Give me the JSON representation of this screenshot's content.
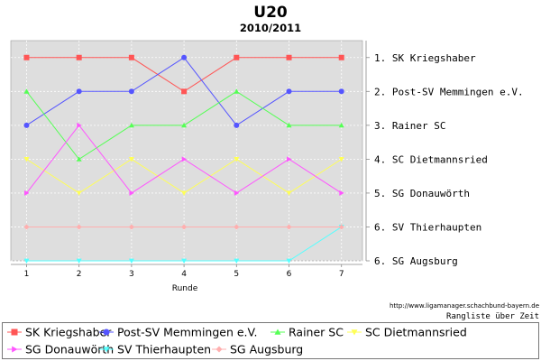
{
  "chart_data": {
    "type": "line",
    "title": "U20",
    "subtitle": "2010/2011",
    "xlabel": "Runde",
    "ylabel": "",
    "x": [
      1,
      2,
      3,
      4,
      5,
      6,
      7
    ],
    "ylim": [
      7,
      0.5
    ],
    "y_reversed": true,
    "grid": true,
    "legend_position": "bottom",
    "right_tick_labels": [
      "1. SK Kriegshaber",
      "2. Post-SV Memmingen e.V.",
      "3. Rainer SC",
      "4. SC Dietmannsried",
      "5. SG Donauwörth",
      "6. SV Thierhaupten",
      "6. SG Augsburg"
    ],
    "right_tick_ranks": [
      1,
      2,
      3,
      4,
      5,
      6,
      7
    ],
    "source": "http://www.ligamanager.schachbund-bayern.de",
    "caption": "Rangliste über Zeit",
    "series": [
      {
        "name": "SK Kriegshaber",
        "color": "#ff5555",
        "marker": "square",
        "values": [
          1,
          1,
          1,
          2,
          1,
          1,
          1
        ]
      },
      {
        "name": "Post-SV Memmingen e.V.",
        "color": "#5555ff",
        "marker": "circle",
        "values": [
          3,
          2,
          2,
          1,
          3,
          2,
          2
        ]
      },
      {
        "name": "Rainer SC",
        "color": "#55ff55",
        "marker": "triangle-up",
        "values": [
          2,
          4,
          3,
          3,
          2,
          3,
          3
        ]
      },
      {
        "name": "SC Dietmannsried",
        "color": "#ffff55",
        "marker": "triangle-down",
        "values": [
          4,
          5,
          4,
          5,
          4,
          5,
          4
        ]
      },
      {
        "name": "SG Donauwörth",
        "color": "#ff55ff",
        "marker": "triangle-right",
        "values": [
          5,
          3,
          5,
          4,
          5,
          4,
          5
        ]
      },
      {
        "name": "SV Thierhaupten",
        "color": "#55ffff",
        "marker": "triangle-down",
        "values": [
          7,
          7,
          7,
          7,
          7,
          7,
          6
        ]
      },
      {
        "name": "SG Augsburg",
        "color": "#ffafaf",
        "marker": "diamond",
        "values": [
          6,
          6,
          6,
          6,
          6,
          6,
          6
        ]
      }
    ]
  }
}
